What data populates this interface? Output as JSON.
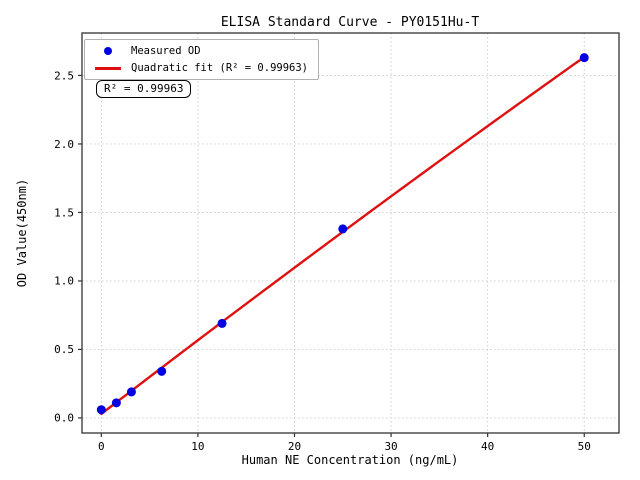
{
  "chart_data": {
    "type": "scatter",
    "title": "ELISA Standard Curve - PY0151Hu-T",
    "xlabel": "Human NE Concentration (ng/mL)",
    "ylabel": "OD Value(450nm)",
    "x": [
      0,
      1.56,
      3.12,
      6.25,
      12.5,
      25,
      50
    ],
    "series": [
      {
        "name": "Measured OD",
        "kind": "scatter",
        "color": "#0000e0",
        "values": [
          0.06,
          0.11,
          0.19,
          0.34,
          0.69,
          1.38,
          2.63
        ]
      },
      {
        "name": "Quadratic fit (R² = 0.99963)",
        "kind": "line",
        "color": "#e01010",
        "fit": {
          "form": "quadratic",
          "a": 0.0292,
          "b": 0.05422,
          "c": -4.23e-05,
          "x_min": 0,
          "x_max": 50
        }
      }
    ],
    "r_squared": 0.99963,
    "annotation": "R² = 0.99963",
    "xticks": [
      0,
      10,
      20,
      30,
      40,
      50
    ],
    "xtick_labels": [
      "0",
      "10",
      "20",
      "30",
      "40",
      "50"
    ],
    "yticks": [
      0.0,
      0.5,
      1.0,
      1.5,
      2.0,
      2.5
    ],
    "ytick_labels": [
      "0.0",
      "0.5",
      "1.0",
      "1.5",
      "2.0",
      "2.5"
    ],
    "xlim": [
      -2,
      53.6
    ],
    "ylim": [
      -0.11,
      2.81
    ],
    "grid": true,
    "grid_style": "dotted",
    "grid_color": "#c9c9c9",
    "frame_color": "#333333",
    "legend_position": "upper-left",
    "marker_radius": 4.5
  }
}
